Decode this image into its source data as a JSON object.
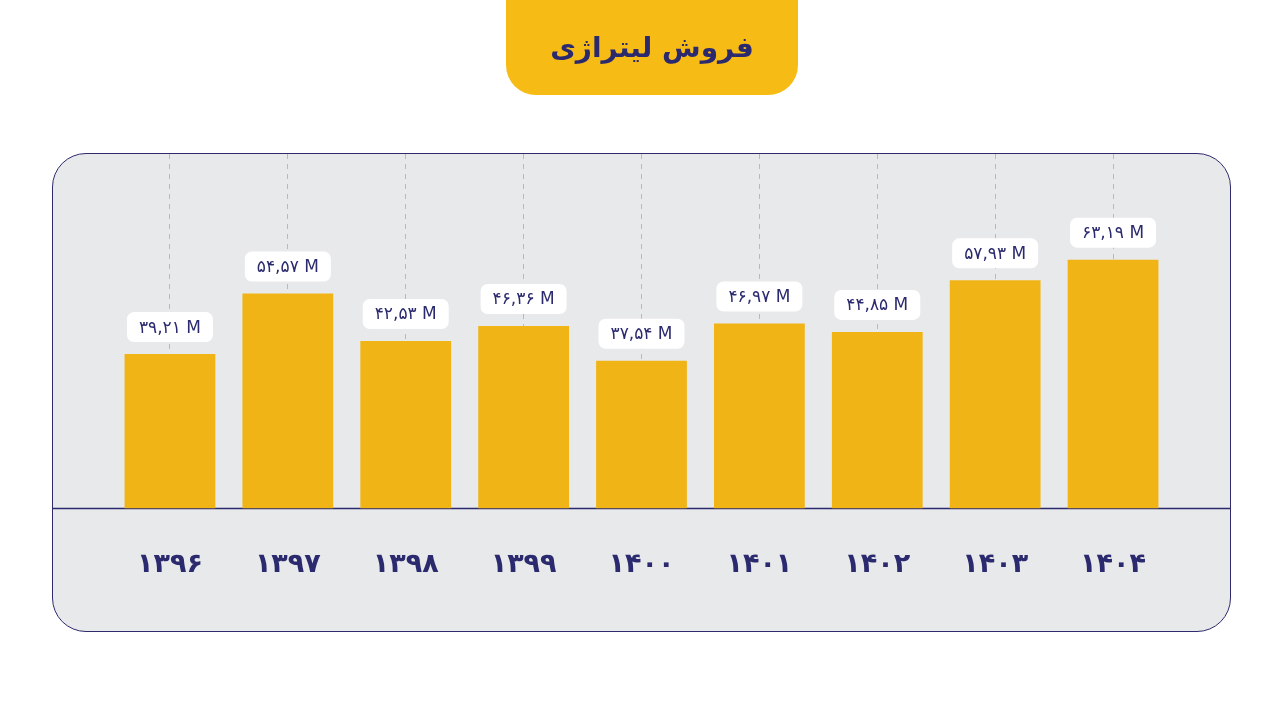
{
  "chart_data": {
    "type": "bar",
    "title": "فروش لیتراژی",
    "categories": [
      "۱۳۹۶",
      "۱۳۹۷",
      "۱۳۹۸",
      "۱۳۹۹",
      "۱۴۰۰",
      "۱۴۰۱",
      "۱۴۰۲",
      "۱۴۰۳",
      "۱۴۰۴"
    ],
    "values": [
      39.21,
      54.57,
      42.53,
      46.36,
      37.54,
      46.97,
      44.85,
      57.93,
      63.19
    ],
    "value_labels": [
      "۳۹,۲۱ M",
      "۵۴,۵۷ M",
      "۴۲,۵۳ M",
      "۴۶,۳۶ M",
      "۳۷,۵۴ M",
      "۴۶,۹۷ M",
      "۴۴,۸۵ M",
      "۵۷,۹۳ M",
      "۶۳,۱۹ M"
    ],
    "color": "#f0b417",
    "grid": "x"
  }
}
